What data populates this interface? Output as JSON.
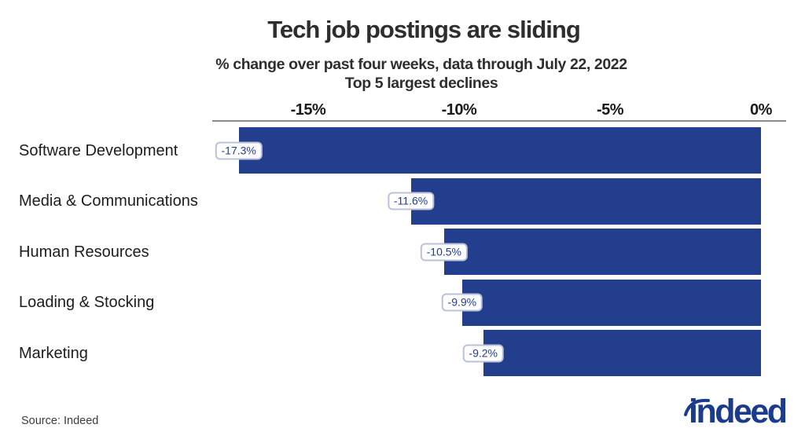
{
  "header": {
    "title": "Tech job postings are sliding",
    "subtitle_line1": "% change over past four weeks, data through July 22, 2022",
    "subtitle_line2": "Top 5 largest declines"
  },
  "chart_data": {
    "type": "bar",
    "orientation": "horizontal",
    "title": "Tech job postings are sliding",
    "subtitle": "% change over past four weeks, data through July 22, 2022 — Top 5 largest declines",
    "categories": [
      "Software Development",
      "Media & Communications",
      "Human Resources",
      "Loading & Stocking",
      "Marketing"
    ],
    "values": [
      -17.3,
      -11.6,
      -10.5,
      -9.9,
      -9.2
    ],
    "value_labels": [
      "-17.3%",
      "-11.6%",
      "-10.5%",
      "-9.9%",
      "-9.2%"
    ],
    "x_ticks": [
      {
        "label": "-15%",
        "value": -15
      },
      {
        "label": "-10%",
        "value": -10
      },
      {
        "label": "-5%",
        "value": -5
      },
      {
        "label": "0%",
        "value": 0
      }
    ],
    "xlim": [
      -18.2,
      0.8
    ],
    "xlabel": "",
    "ylabel": "",
    "grid": false,
    "legend": null,
    "bar_color": "#223E8C",
    "value_label_text_color": "#223E8C",
    "value_label_border_color": "#B9C2DA",
    "axis_line_color": "#8C8C8C"
  },
  "footer": {
    "source": "Source: Indeed",
    "logo_text": "indeed",
    "logo_color": "#1B3C8D"
  }
}
